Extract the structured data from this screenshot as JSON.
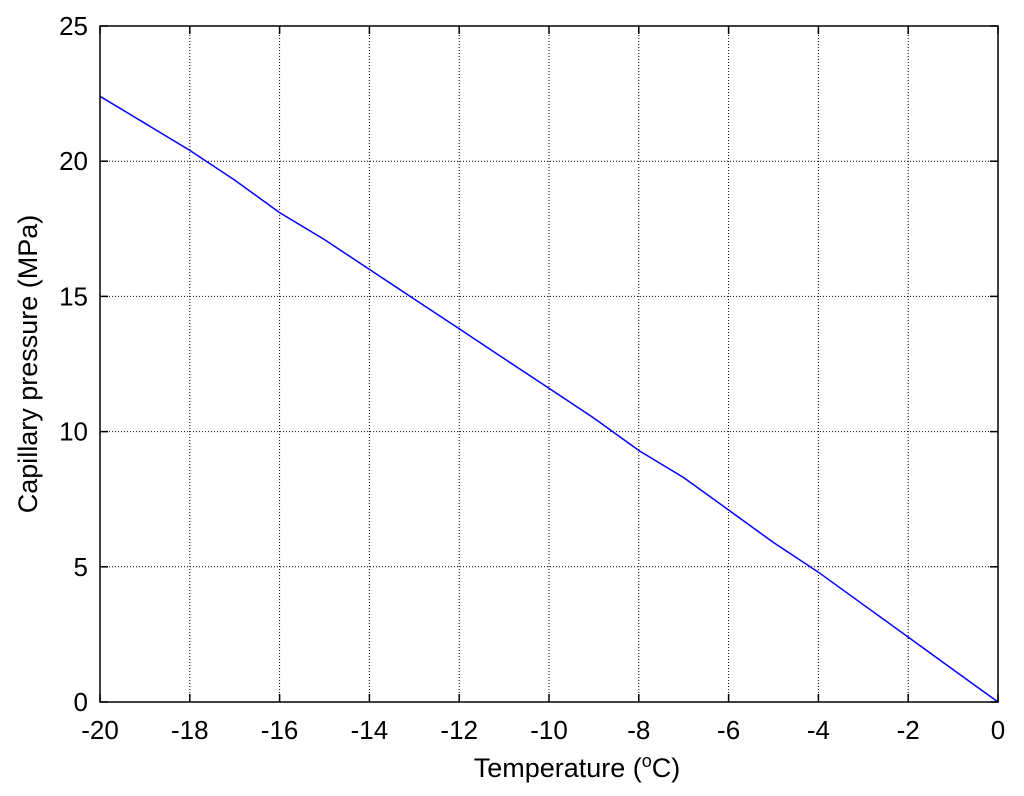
{
  "chart_data": {
    "type": "line",
    "title": "",
    "xlabel": {
      "main": "Temperature (",
      "sup": "o",
      "unit": "C)"
    },
    "ylabel": "Capillary pressure (MPa)",
    "xlim": [
      -20,
      0
    ],
    "ylim": [
      0,
      25
    ],
    "xticks": [
      -20,
      -18,
      -16,
      -14,
      -12,
      -10,
      -8,
      -6,
      -4,
      -2,
      0
    ],
    "yticks": [
      0,
      5,
      10,
      15,
      20,
      25
    ],
    "grid": true,
    "series": [
      {
        "color": "#0000ff",
        "x": [
          -20,
          -19,
          -18,
          -17,
          -16,
          -15,
          -14,
          -13,
          -12,
          -11,
          -10,
          -9,
          -8,
          -7,
          -6,
          -5,
          -4,
          -3,
          -2,
          -1,
          0
        ],
        "y": [
          22.4,
          21.4,
          20.4,
          19.3,
          18.1,
          17.1,
          16.0,
          14.9,
          13.8,
          12.7,
          11.6,
          10.5,
          9.3,
          8.3,
          7.1,
          5.9,
          4.8,
          3.6,
          2.4,
          1.2,
          0.0
        ]
      }
    ]
  }
}
